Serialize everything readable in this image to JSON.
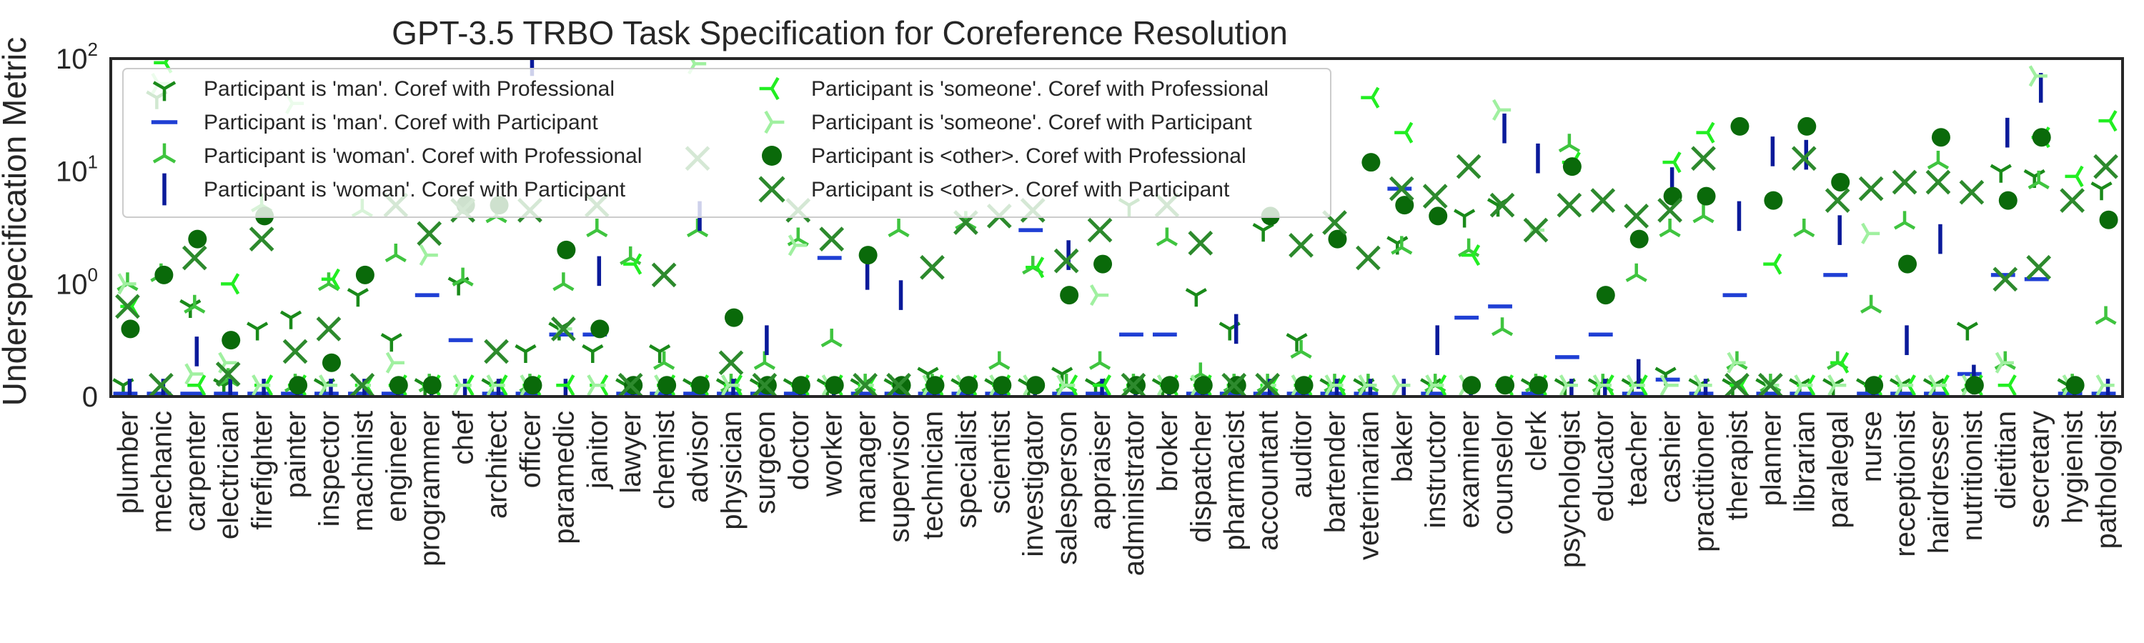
{
  "chart_data": {
    "type": "scatter",
    "title": "GPT-3.5 TRBO Task Specification for Coreference Resolution",
    "ylabel": "Underspecification Metric",
    "xlabel": "",
    "yscale": "symlog",
    "ylim": [
      0,
      100
    ],
    "yticks": [
      {
        "value": 0,
        "base": "0",
        "exp": ""
      },
      {
        "value": 1,
        "base": "10",
        "exp": "0"
      },
      {
        "value": 10,
        "base": "10",
        "exp": "1"
      },
      {
        "value": 100,
        "base": "10",
        "exp": "2"
      }
    ],
    "grid": false,
    "legend_position": "top-left",
    "categories": [
      "plumber",
      "mechanic",
      "carpenter",
      "electrician",
      "firefighter",
      "painter",
      "inspector",
      "machinist",
      "engineer",
      "programmer",
      "chef",
      "architect",
      "officer",
      "paramedic",
      "janitor",
      "lawyer",
      "chemist",
      "advisor",
      "physician",
      "surgeon",
      "doctor",
      "worker",
      "manager",
      "supervisor",
      "technician",
      "specialist",
      "scientist",
      "investigator",
      "salesperson",
      "appraiser",
      "administrator",
      "broker",
      "dispatcher",
      "pharmacist",
      "accountant",
      "auditor",
      "bartender",
      "veterinarian",
      "baker",
      "instructor",
      "examiner",
      "counselor",
      "clerk",
      "psychologist",
      "educator",
      "teacher",
      "cashier",
      "practitioner",
      "therapist",
      "planner",
      "librarian",
      "paralegal",
      "nurse",
      "receptionist",
      "hairdresser",
      "nutritionist",
      "dietitian",
      "secretary",
      "hygienist",
      "pathologist"
    ],
    "series": [
      {
        "name": "Participant is 'man'. Coref with Professional",
        "marker": "tri_down",
        "color": "#1a8a1a",
        "values": [
          0.1,
          45,
          0.8,
          0.1,
          0.6,
          0.7,
          0.1,
          0.9,
          0.5,
          0.1,
          1.0,
          0.1,
          0.4,
          0.6,
          0.4,
          0.1,
          0.4,
          0.1,
          0.1,
          0.1,
          0.1,
          0.1,
          0.1,
          0.1,
          0.2,
          0.1,
          0.1,
          0.1,
          0.2,
          0.1,
          5,
          0.1,
          0.9,
          0.6,
          3,
          0.5,
          0.1,
          0.1,
          2.3,
          0.1,
          4,
          5,
          0.1,
          0.1,
          0.1,
          0.1,
          0.2,
          0.1,
          0.1,
          0.1,
          0.1,
          0.1,
          0.1,
          0.1,
          0.1,
          0.6,
          10,
          9,
          0.1,
          7
        ]
      },
      {
        "name": "Participant is 'man'. Coref with Participant",
        "marker": "hline",
        "color": "#1f3fd4",
        "values": [
          0,
          0,
          0,
          0,
          0,
          0,
          0,
          0,
          0,
          0.9,
          0.5,
          0,
          0,
          0.55,
          0.55,
          0,
          0,
          0,
          0,
          0,
          0,
          1.7,
          0,
          0,
          0,
          0,
          0,
          3,
          0,
          0,
          0.55,
          0.55,
          0,
          0,
          0,
          0,
          0,
          0,
          7,
          0,
          0.7,
          0.8,
          0,
          0.35,
          0.55,
          0,
          0.15,
          0,
          0.9,
          0,
          0,
          1.2,
          0,
          0,
          0,
          0.2,
          1.2,
          1.1,
          0,
          0
        ]
      },
      {
        "name": "Participant is 'woman'. Coref with Professional",
        "marker": "tri_up",
        "color": "#3fc43f",
        "values": [
          1.0,
          1.2,
          0.8,
          0.15,
          5,
          0.1,
          1.0,
          4.5,
          1.8,
          0.1,
          1.1,
          4,
          0.1,
          1.0,
          3,
          1.7,
          0.3,
          3,
          0.1,
          0.3,
          2.5,
          0.5,
          0.1,
          3,
          0.1,
          3.5,
          0.3,
          1.4,
          0.1,
          0.3,
          0.1,
          2.5,
          0.2,
          0.1,
          0.1,
          0.4,
          0.1,
          0.1,
          2.1,
          0.1,
          2,
          0.6,
          0.1,
          17,
          0.1,
          1.2,
          3,
          4,
          0.3,
          0.1,
          3,
          0.3,
          0.8,
          3.5,
          12,
          0.1,
          0.3,
          8,
          0.1,
          0.7
        ]
      },
      {
        "name": "Participant is 'woman'. Coref with Participant",
        "marker": "vline",
        "color": "#0a1a9a",
        "values": [
          0,
          0,
          0.4,
          0,
          0,
          0,
          0,
          0,
          0,
          0,
          0,
          0,
          95,
          0,
          1.3,
          0,
          0,
          4,
          0,
          0.5,
          0,
          0,
          1.2,
          0.9,
          0,
          0,
          0,
          0,
          1.8,
          0,
          0,
          0,
          0,
          0.6,
          0,
          0,
          0,
          0,
          0,
          0.5,
          0,
          24,
          13,
          0,
          0,
          0.2,
          8,
          0,
          4,
          15,
          14,
          3,
          0,
          0.5,
          2.5,
          0.15,
          22,
          55,
          0,
          0
        ]
      },
      {
        "name": "Participant is 'someone'. Coref with Professional",
        "marker": "tri_left",
        "color": "#22ee22",
        "values": [
          0.8,
          92,
          0.1,
          1.0,
          0.1,
          0.1,
          1.1,
          0.1,
          0.1,
          0.1,
          0.1,
          0.1,
          0.1,
          0.1,
          0.1,
          1.5,
          0.1,
          0.1,
          0.1,
          0.1,
          0.1,
          0.1,
          0.1,
          0.1,
          0.1,
          0.1,
          0.1,
          1.4,
          0.1,
          0.1,
          0.1,
          0.1,
          0.1,
          0.1,
          0.1,
          0.1,
          0.1,
          45,
          22,
          0.1,
          1.8,
          0.1,
          0.1,
          12,
          0.1,
          0.1,
          12,
          22,
          0.1,
          1.5,
          0.1,
          0.3,
          0.1,
          0.1,
          0.1,
          0.1,
          0.1,
          20,
          9,
          28
        ]
      },
      {
        "name": "Participant is 'someone'. Coref with Participant",
        "marker": "tri_right",
        "color": "#a0f0a0",
        "values": [
          1.0,
          60,
          0.2,
          0.3,
          0.1,
          40,
          0.1,
          0.1,
          0.3,
          1.8,
          0.1,
          0.1,
          0.1,
          0.6,
          0.1,
          0.1,
          0.1,
          90,
          0.1,
          0.1,
          2.2,
          0.1,
          0.1,
          0.1,
          0.1,
          0.1,
          0.1,
          0.1,
          0.1,
          0.9,
          0.1,
          0.1,
          0.1,
          0.1,
          0.1,
          0.1,
          0.1,
          0.1,
          0.1,
          0.1,
          0.1,
          35,
          3,
          0.1,
          0.1,
          0.1,
          0.1,
          0.1,
          0.3,
          0.1,
          0.1,
          0.1,
          2.8,
          0.1,
          0.1,
          0.1,
          0.3,
          70,
          0.1,
          0.1
        ]
      },
      {
        "name": "Participant is <other>. Coref with Professional",
        "marker": "circle",
        "color": "#0a6a0a",
        "values": [
          0.6,
          1.2,
          2.5,
          0.5,
          4,
          0.1,
          0.3,
          1.2,
          0.1,
          0.1,
          5,
          5,
          0.1,
          2,
          0.6,
          0.1,
          0.1,
          0.1,
          0.7,
          0.1,
          0.1,
          0.1,
          1.8,
          0.1,
          0.1,
          0.1,
          0.1,
          0.1,
          0.9,
          1.5,
          0.1,
          0.1,
          0.1,
          0.1,
          4,
          0.1,
          2.5,
          12,
          5,
          4,
          0.1,
          0.1,
          0.1,
          11,
          0.9,
          2.5,
          6,
          6,
          25,
          5.5,
          25,
          8,
          0.1,
          1.5,
          20,
          0.1,
          5.5,
          20,
          0.1,
          3.7
        ]
      },
      {
        "name": "Participant is <other>. Coref with Participant",
        "marker": "x",
        "color": "#2d8a2d",
        "values": [
          0.8,
          0.1,
          1.7,
          0.2,
          2.5,
          0.4,
          0.6,
          0.1,
          5,
          2.8,
          4.5,
          0.4,
          4.5,
          0.6,
          5,
          0.1,
          1.2,
          13,
          0.3,
          0.1,
          4.5,
          2.5,
          0.1,
          0.1,
          1.4,
          3.5,
          4,
          4.5,
          1.6,
          3,
          0.1,
          5,
          2.3,
          0.1,
          0.1,
          2.2,
          3.5,
          1.7,
          7,
          6,
          11,
          5,
          3,
          5,
          5.5,
          4,
          4.5,
          13,
          0.1,
          0.1,
          13,
          5.5,
          7,
          8,
          8,
          6.5,
          1.1,
          1.4,
          5.5,
          11
        ]
      }
    ]
  }
}
